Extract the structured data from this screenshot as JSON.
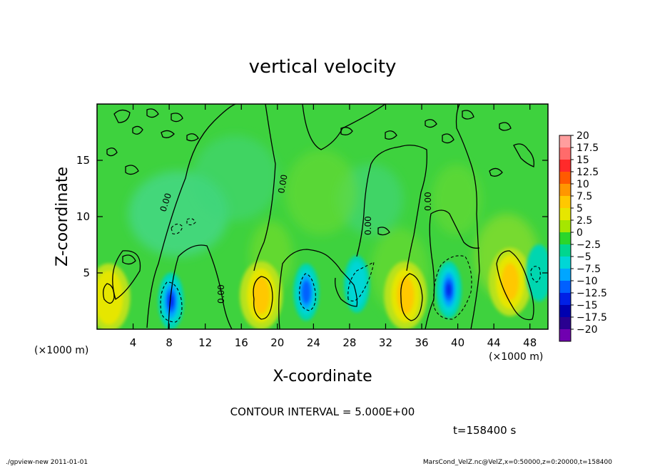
{
  "chart_data": {
    "type": "heatmap",
    "title": "vertical velocity",
    "xlabel": "X-coordinate",
    "ylabel": "Z-coordinate",
    "x_unit": "(×1000 m)",
    "y_unit": "(×1000 m)",
    "xlim": [
      0,
      50
    ],
    "ylim": [
      0,
      20
    ],
    "x_ticks": [
      4,
      8,
      12,
      16,
      20,
      24,
      28,
      32,
      36,
      40,
      44,
      48
    ],
    "y_ticks": [
      5,
      10,
      15
    ],
    "contour_interval_text": "CONTOUR INTERVAL = 5.000E+00",
    "contour_label": "0.00",
    "time_text": "t=158400 s",
    "colorbar": {
      "labels": [
        "20",
        "17.5",
        "15",
        "12.5",
        "10",
        "7.5",
        "5",
        "2.5",
        "0",
        "−2.5",
        "−5",
        "−7.5",
        "−10",
        "−12.5",
        "−15",
        "−17.5",
        "−20"
      ],
      "colors": [
        "#ff9e9e",
        "#ff6b6b",
        "#ff2a2a",
        "#ff5a00",
        "#ff9600",
        "#ffc800",
        "#e6e600",
        "#a6e600",
        "#2bd62b",
        "#00d68f",
        "#00d6d6",
        "#00a6ff",
        "#0060ff",
        "#0020e6",
        "#0000b0",
        "#2a0090",
        "#7000b0"
      ]
    },
    "features": [
      {
        "kind": "updraft",
        "x": 1.3,
        "z": 2.8,
        "strength": 5
      },
      {
        "kind": "downdraft",
        "x": 8.2,
        "z": 2.5,
        "strength": -12
      },
      {
        "kind": "updraft",
        "x": 18.2,
        "z": 3.0,
        "strength": 8
      },
      {
        "kind": "downdraft",
        "x": 23.2,
        "z": 3.3,
        "strength": -10
      },
      {
        "kind": "downdraft",
        "x": 28.8,
        "z": 4.0,
        "strength": -6
      },
      {
        "kind": "updraft",
        "x": 34.2,
        "z": 3.0,
        "strength": 8
      },
      {
        "kind": "downdraft",
        "x": 39.0,
        "z": 3.5,
        "strength": -12
      },
      {
        "kind": "updraft",
        "x": 45.8,
        "z": 4.2,
        "strength": 8
      },
      {
        "kind": "downdraft",
        "x": 49.0,
        "z": 5.0,
        "strength": -3
      }
    ]
  },
  "footer": {
    "left": "./gpview-new   2011-01-01",
    "right": "MarsCond_VelZ.nc@VelZ,x=0:50000,z=0:20000,t=158400"
  }
}
